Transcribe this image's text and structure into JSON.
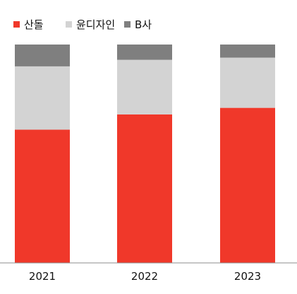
{
  "chart_data": {
    "type": "bar",
    "stacked": true,
    "categories": [
      "2021",
      "2022",
      "2023"
    ],
    "series": [
      {
        "name": "산돌",
        "color": "#f0382a",
        "values": [
          61,
          68,
          71
        ]
      },
      {
        "name": "윤디자인",
        "color": "#d3d3d3",
        "values": [
          29,
          25,
          23
        ]
      },
      {
        "name": "B사",
        "color": "#7f7f7f",
        "values": [
          10,
          7,
          6
        ]
      }
    ],
    "legend_position": "top-left",
    "grid": false,
    "ylim": [
      0,
      100
    ]
  }
}
